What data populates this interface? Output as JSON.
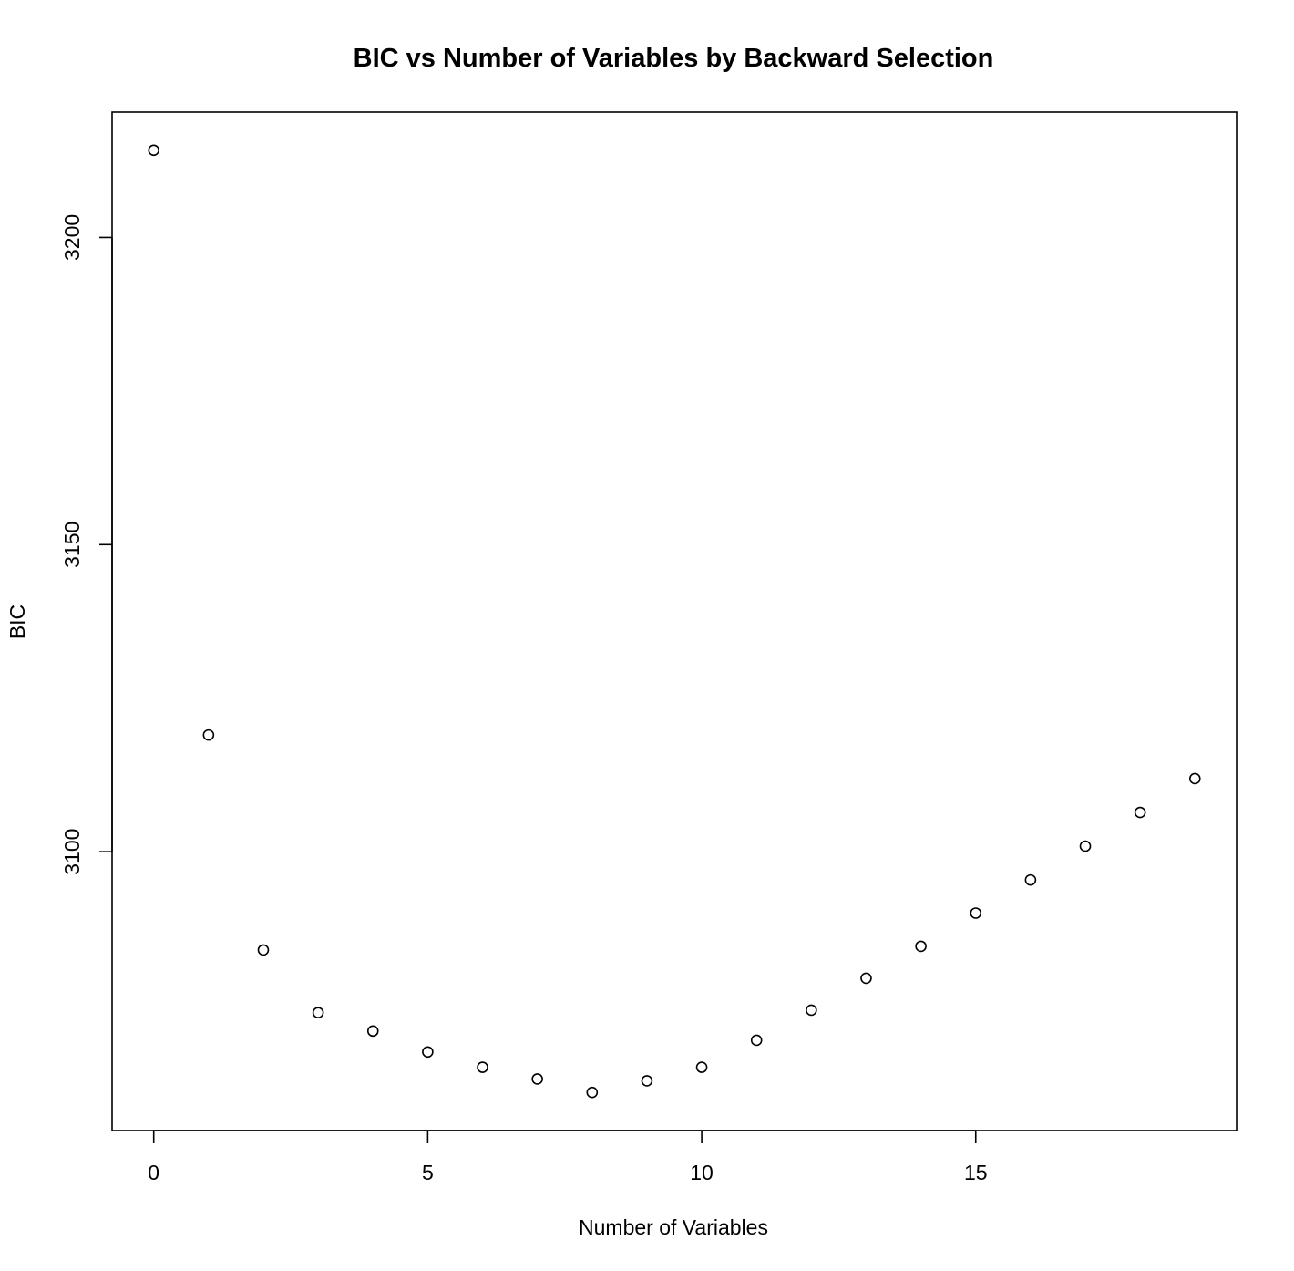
{
  "chart_data": {
    "type": "scatter",
    "title": "BIC vs Number of Variables by Backward Selection",
    "xlabel": "Number of Variables",
    "ylabel": "BIC",
    "xlim": [
      -0.76,
      19.76
    ],
    "ylim": [
      3054.6,
      3220.4
    ],
    "x_ticks": [
      0,
      5,
      10,
      15
    ],
    "x_tick_labels": [
      "0",
      "5",
      "10",
      "15"
    ],
    "y_ticks": [
      3100,
      3150,
      3200
    ],
    "y_tick_labels": [
      "3100",
      "3150",
      "3200"
    ],
    "grid": false,
    "legend": "none",
    "marker": "open-circle",
    "marker_color": "#000000",
    "points": [
      {
        "x": 0,
        "y": 3214.2
      },
      {
        "x": 1,
        "y": 3119.0
      },
      {
        "x": 2,
        "y": 3084.0
      },
      {
        "x": 3,
        "y": 3073.8
      },
      {
        "x": 4,
        "y": 3070.8
      },
      {
        "x": 5,
        "y": 3067.4
      },
      {
        "x": 6,
        "y": 3064.9
      },
      {
        "x": 7,
        "y": 3063.0
      },
      {
        "x": 8,
        "y": 3060.8
      },
      {
        "x": 9,
        "y": 3062.7
      },
      {
        "x": 10,
        "y": 3064.9
      },
      {
        "x": 11,
        "y": 3069.3
      },
      {
        "x": 12,
        "y": 3074.2
      },
      {
        "x": 13,
        "y": 3079.4
      },
      {
        "x": 14,
        "y": 3084.6
      },
      {
        "x": 15,
        "y": 3090.0
      },
      {
        "x": 16,
        "y": 3095.4
      },
      {
        "x": 17,
        "y": 3100.9
      },
      {
        "x": 18,
        "y": 3106.4
      },
      {
        "x": 19,
        "y": 3111.9
      }
    ]
  }
}
